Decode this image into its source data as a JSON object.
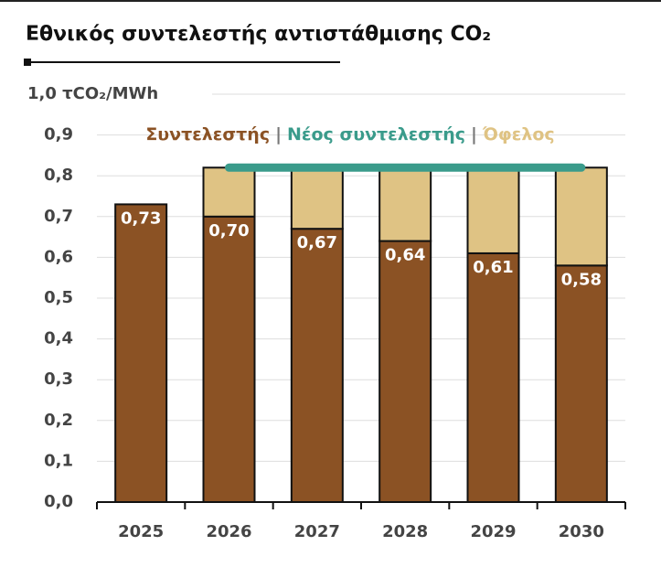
{
  "chart_data": {
    "type": "stacked_bar",
    "title": "Εθνικός συντελεστής αντιστάθμισης CO₂",
    "categories": [
      "2025",
      "2026",
      "2027",
      "2028",
      "2029",
      "2030"
    ],
    "series": [
      {
        "name": "Συντελεστής",
        "color": "#8b5224",
        "values": [
          0.73,
          0.7,
          0.67,
          0.64,
          0.61,
          0.58
        ],
        "value_labels": [
          "0,73",
          "0,70",
          "0,67",
          "0,64",
          "0,61",
          "0,58"
        ]
      },
      {
        "name": "Νέος συντελεστής",
        "color": "#3a9b8b",
        "type": "line",
        "values": [
          null,
          0.82,
          0.82,
          0.82,
          0.82,
          0.82
        ]
      },
      {
        "name": "Όφελος",
        "color": "#dfc384",
        "values": [
          null,
          0.12,
          0.15,
          0.18,
          0.21,
          0.24
        ]
      }
    ],
    "legend_separator": "|",
    "ylim": [
      0,
      1
    ],
    "yticks": [
      {
        "value": 0,
        "label": "0,0"
      },
      {
        "value": 0.1,
        "label": "0,1"
      },
      {
        "value": 0.2,
        "label": "0,2"
      },
      {
        "value": 0.3,
        "label": "0,3"
      },
      {
        "value": 0.4,
        "label": "0,4"
      },
      {
        "value": 0.5,
        "label": "0,5"
      },
      {
        "value": 0.6,
        "label": "0,6"
      },
      {
        "value": 0.7,
        "label": "0,7"
      },
      {
        "value": 0.8,
        "label": "0,8"
      },
      {
        "value": 0.9,
        "label": "0,9"
      },
      {
        "value": 1,
        "label": "1,0 τCO₂/MWh"
      }
    ],
    "grid": true
  }
}
